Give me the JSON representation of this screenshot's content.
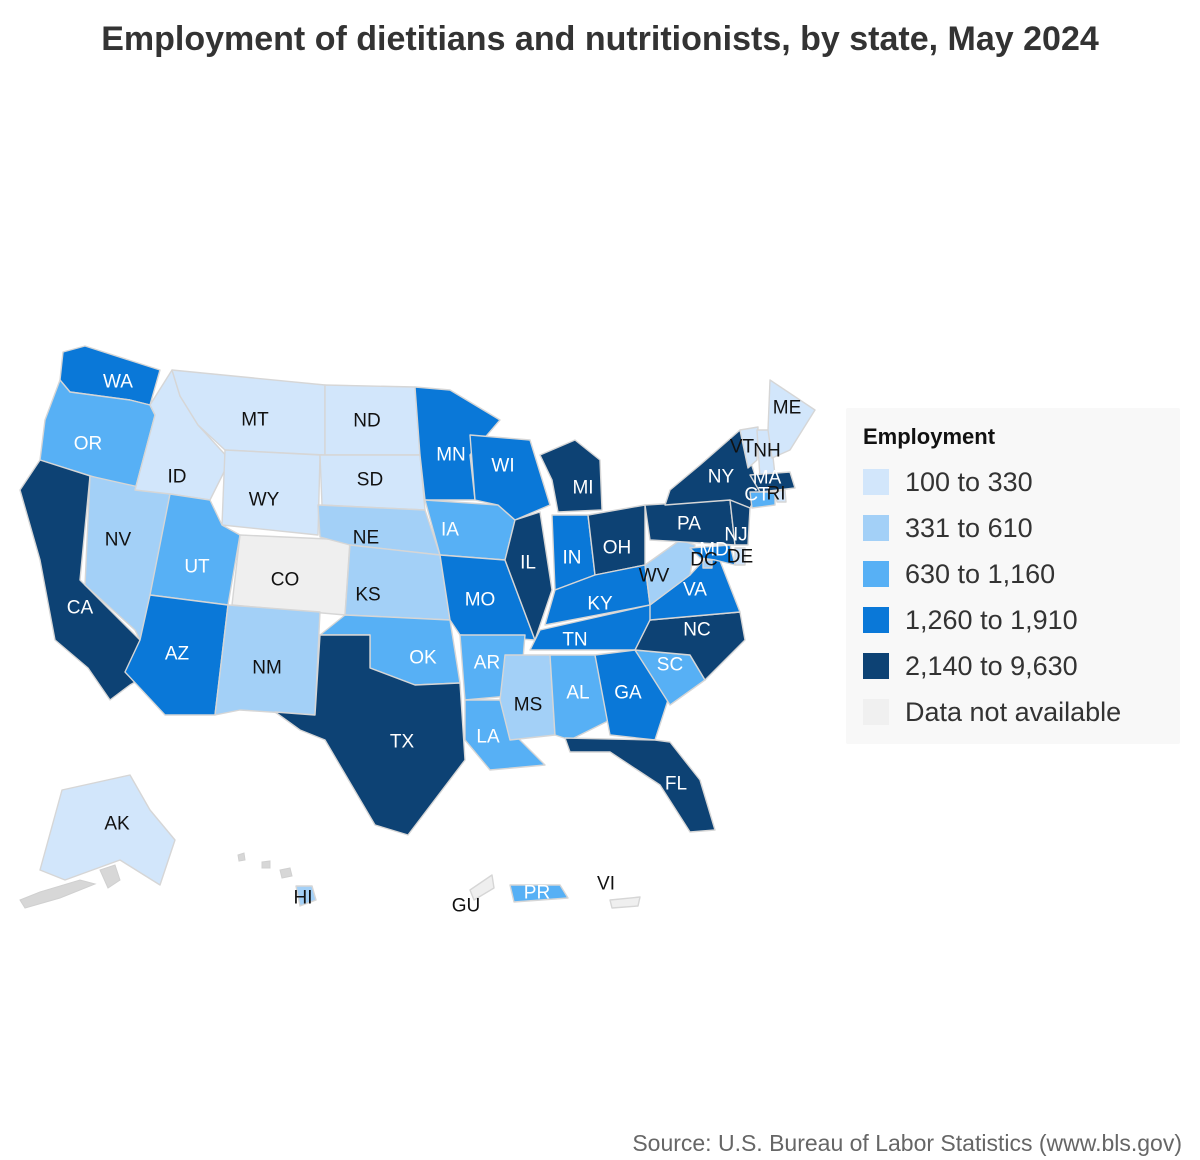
{
  "title": "Employment of dietitians and nutritionists, by state, May 2024",
  "legend": {
    "title": "Employment",
    "placement": "right",
    "items": [
      {
        "label": "100 to 330",
        "color": "#d2e6fb"
      },
      {
        "label": "331 to 610",
        "color": "#a3d0f7"
      },
      {
        "label": "630 to 1,160",
        "color": "#57b0f5"
      },
      {
        "label": "1,260 to 1,910",
        "color": "#0a78d8"
      },
      {
        "label": "2,140 to 9,630",
        "color": "#0d4274"
      },
      {
        "label": "Data not available",
        "color": "#f0f0f0"
      }
    ]
  },
  "source": "Source: U.S. Bureau of Labor Statistics (www.bls.gov)",
  "chart_data": {
    "type": "choropleth",
    "states": [
      {
        "code": "WA",
        "bin": 3
      },
      {
        "code": "OR",
        "bin": 2
      },
      {
        "code": "CA",
        "bin": 4
      },
      {
        "code": "NV",
        "bin": 1
      },
      {
        "code": "ID",
        "bin": 0
      },
      {
        "code": "MT",
        "bin": 0
      },
      {
        "code": "WY",
        "bin": 0
      },
      {
        "code": "UT",
        "bin": 2
      },
      {
        "code": "AZ",
        "bin": 3
      },
      {
        "code": "CO",
        "bin": 5
      },
      {
        "code": "NM",
        "bin": 1
      },
      {
        "code": "ND",
        "bin": 0
      },
      {
        "code": "SD",
        "bin": 0
      },
      {
        "code": "NE",
        "bin": 1
      },
      {
        "code": "KS",
        "bin": 1
      },
      {
        "code": "OK",
        "bin": 2
      },
      {
        "code": "TX",
        "bin": 4
      },
      {
        "code": "MN",
        "bin": 3
      },
      {
        "code": "IA",
        "bin": 2
      },
      {
        "code": "MO",
        "bin": 3
      },
      {
        "code": "AR",
        "bin": 2
      },
      {
        "code": "LA",
        "bin": 2
      },
      {
        "code": "WI",
        "bin": 3
      },
      {
        "code": "IL",
        "bin": 4
      },
      {
        "code": "MI",
        "bin": 4
      },
      {
        "code": "IN",
        "bin": 3
      },
      {
        "code": "OH",
        "bin": 4
      },
      {
        "code": "KY",
        "bin": 3
      },
      {
        "code": "TN",
        "bin": 3
      },
      {
        "code": "MS",
        "bin": 1
      },
      {
        "code": "AL",
        "bin": 2
      },
      {
        "code": "GA",
        "bin": 3
      },
      {
        "code": "FL",
        "bin": 4
      },
      {
        "code": "SC",
        "bin": 2
      },
      {
        "code": "NC",
        "bin": 4
      },
      {
        "code": "VA",
        "bin": 3
      },
      {
        "code": "WV",
        "bin": 1
      },
      {
        "code": "PA",
        "bin": 4
      },
      {
        "code": "NY",
        "bin": 4
      },
      {
        "code": "VT",
        "bin": 0
      },
      {
        "code": "NH",
        "bin": 0
      },
      {
        "code": "ME",
        "bin": 0
      },
      {
        "code": "MA",
        "bin": 4
      },
      {
        "code": "RI",
        "bin": 0
      },
      {
        "code": "CT",
        "bin": 2
      },
      {
        "code": "NJ",
        "bin": 4
      },
      {
        "code": "DE",
        "bin": 0
      },
      {
        "code": "MD",
        "bin": 3
      },
      {
        "code": "DC",
        "bin": 1
      },
      {
        "code": "AK",
        "bin": 0
      },
      {
        "code": "HI",
        "bin": 1
      },
      {
        "code": "PR",
        "bin": 2
      },
      {
        "code": "GU",
        "bin": 5
      },
      {
        "code": "VI",
        "bin": 5
      }
    ]
  }
}
